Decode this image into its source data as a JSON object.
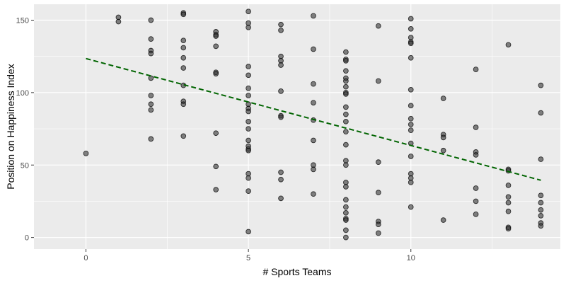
{
  "chart_data": {
    "type": "scatter",
    "title": "",
    "xlabel": "# Sports Teams",
    "ylabel": "Position on Happiness Index",
    "xlim": [
      -1.6,
      14.6
    ],
    "ylim": [
      -8,
      161
    ],
    "x_ticks": [
      0,
      5,
      10
    ],
    "x_tick_labels": [
      "0",
      "5",
      "10"
    ],
    "y_ticks": [
      0,
      50,
      100,
      150
    ],
    "y_tick_labels": [
      "0",
      "50",
      "100",
      "150"
    ],
    "grid": true,
    "legend": "none",
    "points": [
      [
        0,
        58
      ],
      [
        1,
        152
      ],
      [
        1,
        149
      ],
      [
        2,
        150
      ],
      [
        2,
        137
      ],
      [
        2,
        129
      ],
      [
        2,
        127
      ],
      [
        2,
        110
      ],
      [
        2,
        98
      ],
      [
        2,
        92
      ],
      [
        2,
        88
      ],
      [
        2,
        68
      ],
      [
        3,
        155
      ],
      [
        3,
        154
      ],
      [
        3,
        136
      ],
      [
        3,
        131
      ],
      [
        3,
        124
      ],
      [
        3,
        117
      ],
      [
        3,
        105
      ],
      [
        3,
        94
      ],
      [
        3,
        92
      ],
      [
        3,
        70
      ],
      [
        4,
        142
      ],
      [
        4,
        140
      ],
      [
        4,
        139
      ],
      [
        4,
        132
      ],
      [
        4,
        114
      ],
      [
        4,
        113
      ],
      [
        4,
        72
      ],
      [
        4,
        49
      ],
      [
        4,
        33
      ],
      [
        5,
        156
      ],
      [
        5,
        148
      ],
      [
        5,
        145
      ],
      [
        5,
        118
      ],
      [
        5,
        112
      ],
      [
        5,
        103
      ],
      [
        5,
        98
      ],
      [
        5,
        92
      ],
      [
        5,
        89
      ],
      [
        5,
        87
      ],
      [
        5,
        80
      ],
      [
        5,
        75
      ],
      [
        5,
        67
      ],
      [
        5,
        63
      ],
      [
        5,
        61
      ],
      [
        5,
        60
      ],
      [
        5,
        44
      ],
      [
        5,
        41
      ],
      [
        5,
        32
      ],
      [
        5,
        4
      ],
      [
        6,
        147
      ],
      [
        6,
        143
      ],
      [
        6,
        125
      ],
      [
        6,
        122
      ],
      [
        6,
        119
      ],
      [
        6,
        101
      ],
      [
        6,
        84
      ],
      [
        6,
        83
      ],
      [
        6,
        45
      ],
      [
        6,
        40
      ],
      [
        6,
        27
      ],
      [
        7,
        153
      ],
      [
        7,
        130
      ],
      [
        7,
        106
      ],
      [
        7,
        93
      ],
      [
        7,
        81
      ],
      [
        7,
        67
      ],
      [
        7,
        50
      ],
      [
        7,
        47
      ],
      [
        7,
        30
      ],
      [
        8,
        128
      ],
      [
        8,
        123
      ],
      [
        8,
        122
      ],
      [
        8,
        115
      ],
      [
        8,
        110
      ],
      [
        8,
        108
      ],
      [
        8,
        104
      ],
      [
        8,
        100
      ],
      [
        8,
        99
      ],
      [
        8,
        90
      ],
      [
        8,
        85
      ],
      [
        8,
        80
      ],
      [
        8,
        73
      ],
      [
        8,
        64
      ],
      [
        8,
        53
      ],
      [
        8,
        50
      ],
      [
        8,
        38
      ],
      [
        8,
        35
      ],
      [
        8,
        26
      ],
      [
        8,
        21
      ],
      [
        8,
        17
      ],
      [
        8,
        13
      ],
      [
        8,
        12
      ],
      [
        8,
        5
      ],
      [
        8,
        0
      ],
      [
        9,
        146
      ],
      [
        9,
        108
      ],
      [
        9,
        52
      ],
      [
        9,
        31
      ],
      [
        9,
        11
      ],
      [
        9,
        9
      ],
      [
        9,
        3
      ],
      [
        10,
        151
      ],
      [
        10,
        144
      ],
      [
        10,
        138
      ],
      [
        10,
        135
      ],
      [
        10,
        134
      ],
      [
        10,
        124
      ],
      [
        10,
        102
      ],
      [
        10,
        91
      ],
      [
        10,
        82
      ],
      [
        10,
        78
      ],
      [
        10,
        74
      ],
      [
        10,
        65
      ],
      [
        10,
        56
      ],
      [
        10,
        44
      ],
      [
        10,
        41
      ],
      [
        10,
        38
      ],
      [
        10,
        21
      ],
      [
        11,
        96
      ],
      [
        11,
        71
      ],
      [
        11,
        69
      ],
      [
        11,
        60
      ],
      [
        11,
        12
      ],
      [
        12,
        116
      ],
      [
        12,
        76
      ],
      [
        12,
        59
      ],
      [
        12,
        57
      ],
      [
        12,
        34
      ],
      [
        12,
        25
      ],
      [
        12,
        16
      ],
      [
        13,
        133
      ],
      [
        13,
        47
      ],
      [
        13,
        46
      ],
      [
        13,
        36
      ],
      [
        13,
        28
      ],
      [
        13,
        24
      ],
      [
        13,
        18
      ],
      [
        13,
        7
      ],
      [
        13,
        6
      ],
      [
        14,
        105
      ],
      [
        14,
        86
      ],
      [
        14,
        54
      ],
      [
        14,
        29
      ],
      [
        14,
        24
      ],
      [
        14,
        19
      ],
      [
        14,
        15
      ],
      [
        14,
        10
      ],
      [
        14,
        8
      ]
    ],
    "trend_line": {
      "x": [
        0,
        14
      ],
      "y": [
        123.5,
        39.5
      ],
      "color": "#006400",
      "style": "dashed"
    },
    "point_color": "#333333",
    "point_opacity": 0.6,
    "panel_background": "#ebebeb",
    "grid_major_color": "#ffffff"
  }
}
